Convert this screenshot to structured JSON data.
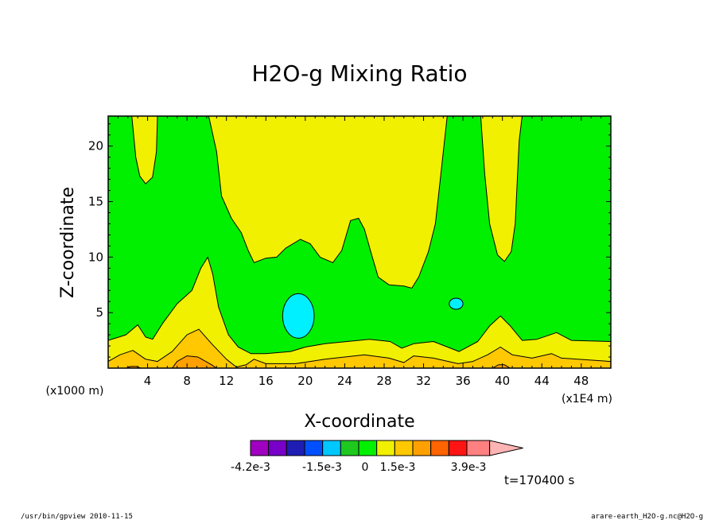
{
  "chart_data": {
    "type": "contour",
    "title": "H2O-g Mixing Ratio",
    "xlabel": "X-coordinate",
    "ylabel": "Z-coordinate",
    "x_unit_left": "(x1000 m)",
    "x_unit_right": "(x1E4 m)",
    "x_ticks": [
      "4",
      "8",
      "12",
      "16",
      "20",
      "24",
      "28",
      "32",
      "36",
      "40",
      "44",
      "48"
    ],
    "x_tick_values": [
      4,
      8,
      12,
      16,
      20,
      24,
      28,
      32,
      36,
      40,
      44,
      48
    ],
    "y_ticks": [
      "5",
      "10",
      "15",
      "20"
    ],
    "y_tick_values": [
      5,
      10,
      15,
      20
    ],
    "xlim": [
      0,
      51
    ],
    "ylim": [
      0,
      22.7
    ],
    "levels_colors": [
      "#a000c0",
      "#7800c8",
      "#1e1eb4",
      "#0050ff",
      "#00c8ff",
      "#1ec81e",
      "#00f000",
      "#f0f000",
      "#ffc800",
      "#ffa000",
      "#ff6400",
      "#ff1414",
      "#ff8080",
      "#ffb4b4"
    ],
    "colorbar_labels": [
      "-4.2e-3",
      "-1.5e-3",
      "0",
      "1.5e-3",
      "3.9e-3"
    ],
    "time_label": "t=170400 s",
    "regions": [
      {
        "name": "background-green",
        "color": "#00f000",
        "points": [
          [
            0,
            0
          ],
          [
            51,
            0
          ],
          [
            51,
            22.7
          ],
          [
            0,
            22.7
          ]
        ]
      },
      {
        "name": "yellow-upper-left",
        "color": "#f0f000",
        "points": [
          [
            2.4,
            22.7
          ],
          [
            2.8,
            19
          ],
          [
            3.2,
            17.3
          ],
          [
            3.8,
            16.6
          ],
          [
            4.5,
            17.2
          ],
          [
            4.9,
            19.5
          ],
          [
            5.0,
            22.7
          ]
        ]
      },
      {
        "name": "yellow-upper-center",
        "color": "#f0f000",
        "points": [
          [
            10.2,
            22.7
          ],
          [
            11,
            19.5
          ],
          [
            11.5,
            15.5
          ],
          [
            12.5,
            13.5
          ],
          [
            13.5,
            12.2
          ],
          [
            14.2,
            10.6
          ],
          [
            14.8,
            9.5
          ],
          [
            16,
            9.9
          ],
          [
            17.1,
            10.0
          ],
          [
            18,
            10.8
          ],
          [
            19.5,
            11.6
          ],
          [
            20.5,
            11.2
          ],
          [
            21.5,
            10.0
          ],
          [
            22.8,
            9.5
          ],
          [
            23.7,
            10.6
          ],
          [
            24.6,
            13.3
          ],
          [
            25.4,
            13.5
          ],
          [
            26,
            12.5
          ],
          [
            26.7,
            10.3
          ],
          [
            27.4,
            8.2
          ],
          [
            28.5,
            7.5
          ],
          [
            30,
            7.4
          ],
          [
            30.8,
            7.2
          ],
          [
            31.5,
            8.2
          ],
          [
            32.5,
            10.5
          ],
          [
            33.2,
            13.0
          ],
          [
            33.7,
            17.0
          ],
          [
            34.1,
            20.3
          ],
          [
            34.4,
            22.7
          ]
        ]
      },
      {
        "name": "yellow-upper-right",
        "color": "#f0f000",
        "points": [
          [
            37.8,
            22.7
          ],
          [
            38.2,
            17.5
          ],
          [
            38.7,
            13.0
          ],
          [
            39.5,
            10.2
          ],
          [
            40.2,
            9.6
          ],
          [
            40.9,
            10.5
          ],
          [
            41.3,
            13.0
          ],
          [
            41.5,
            16.8
          ],
          [
            41.7,
            20.5
          ],
          [
            42.0,
            22.7
          ]
        ]
      },
      {
        "name": "yellow-lower-band",
        "color": "#f0f000",
        "points": [
          [
            0,
            0
          ],
          [
            51,
            0
          ],
          [
            51,
            2.4
          ],
          [
            47,
            2.5
          ],
          [
            45.5,
            3.2
          ],
          [
            43.5,
            2.6
          ],
          [
            42,
            2.5
          ],
          [
            40.8,
            3.8
          ],
          [
            39.8,
            4.7
          ],
          [
            38.7,
            3.8
          ],
          [
            37.5,
            2.4
          ],
          [
            35.6,
            1.5
          ],
          [
            33,
            2.4
          ],
          [
            31,
            2.2
          ],
          [
            29.8,
            1.8
          ],
          [
            28.6,
            2.4
          ],
          [
            26.5,
            2.6
          ],
          [
            22,
            2.2
          ],
          [
            20,
            1.9
          ],
          [
            18.5,
            1.5
          ],
          [
            16,
            1.3
          ],
          [
            14.5,
            1.3
          ],
          [
            13.2,
            1.9
          ],
          [
            12.2,
            3.0
          ],
          [
            11.2,
            5.5
          ],
          [
            10.6,
            8.5
          ],
          [
            10.1,
            10.0
          ],
          [
            9.4,
            9.0
          ],
          [
            8.5,
            7.0
          ],
          [
            7,
            5.8
          ],
          [
            5.5,
            4.0
          ],
          [
            4.5,
            2.6
          ],
          [
            3.8,
            2.8
          ],
          [
            3.0,
            3.9
          ],
          [
            1.8,
            3.0
          ],
          [
            0,
            2.5
          ]
        ]
      },
      {
        "name": "orange-lower-band",
        "color": "#ffc800",
        "points": [
          [
            0,
            0
          ],
          [
            51,
            0
          ],
          [
            51,
            0.6
          ],
          [
            46,
            0.9
          ],
          [
            45,
            1.3
          ],
          [
            43,
            0.9
          ],
          [
            41,
            1.2
          ],
          [
            39.8,
            1.9
          ],
          [
            38.5,
            1.2
          ],
          [
            37,
            0.6
          ],
          [
            35.5,
            0.4
          ],
          [
            33,
            0.9
          ],
          [
            31,
            1.1
          ],
          [
            30,
            0.5
          ],
          [
            28.5,
            0.9
          ],
          [
            26,
            1.2
          ],
          [
            22,
            0.8
          ],
          [
            19,
            0.4
          ],
          [
            16,
            0.4
          ],
          [
            14.8,
            0.8
          ],
          [
            14,
            0.3
          ],
          [
            13,
            0.1
          ],
          [
            12,
            0.8
          ],
          [
            10.5,
            2.2
          ],
          [
            9.2,
            3.5
          ],
          [
            8,
            3.0
          ],
          [
            6.5,
            1.5
          ],
          [
            5,
            0.6
          ],
          [
            3.8,
            0.8
          ],
          [
            2.5,
            1.6
          ],
          [
            1.2,
            1.2
          ],
          [
            0,
            0.6
          ]
        ]
      },
      {
        "name": "dark-orange-patch",
        "color": "#ffa000",
        "points": [
          [
            6.5,
            0
          ],
          [
            7,
            0.6
          ],
          [
            8,
            1.1
          ],
          [
            9.1,
            1.0
          ],
          [
            10.5,
            0.3
          ],
          [
            11,
            0
          ]
        ]
      },
      {
        "name": "dark-orange-patch-right",
        "color": "#ffa000",
        "points": [
          [
            39,
            0
          ],
          [
            39.6,
            0.3
          ],
          [
            40.2,
            0.3
          ],
          [
            40.8,
            0
          ]
        ]
      },
      {
        "name": "dark-orange-patch-left",
        "color": "#ffa000",
        "points": [
          [
            1.8,
            0
          ],
          [
            2.3,
            0.15
          ],
          [
            2.9,
            0.15
          ],
          [
            3.3,
            0
          ]
        ]
      }
    ],
    "ellipses": [
      {
        "name": "cyan-blob-center",
        "color": "#00f0ff",
        "cx": 19.3,
        "cy": 4.7,
        "rx": 1.6,
        "ry": 2.0
      },
      {
        "name": "cyan-blob-right",
        "color": "#00f0ff",
        "cx": 35.3,
        "cy": 5.8,
        "rx": 0.7,
        "ry": 0.5
      }
    ]
  },
  "footer": {
    "left": "/usr/bin/gpview   2010-11-15",
    "right": "arare-earth_H2O-g.nc@H2O-g"
  }
}
